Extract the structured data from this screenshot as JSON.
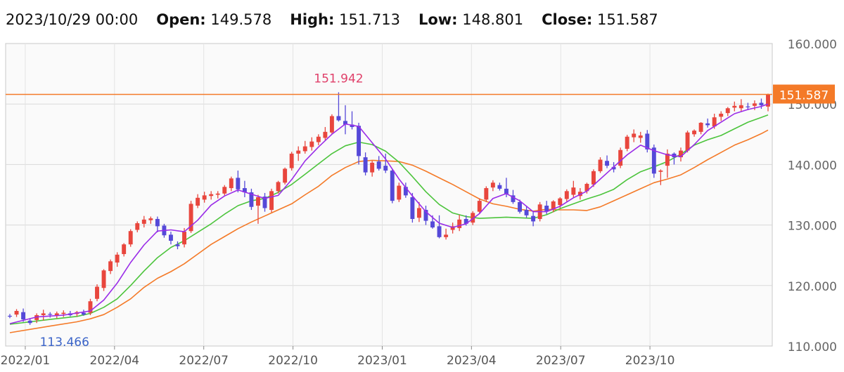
{
  "header": {
    "date": "2023/10/29 00:00",
    "open_label": "Open:",
    "open": "149.578",
    "high_label": "High:",
    "high": "151.713",
    "low_label": "Low:",
    "low": "148.801",
    "close_label": "Close:",
    "close": "151.587"
  },
  "chart_data": {
    "type": "candlestick",
    "title": "",
    "ylim": [
      110,
      160
    ],
    "y_ticks": [
      "160.000",
      "150.000",
      "140.000",
      "130.000",
      "120.000",
      "110.000"
    ],
    "x_ticks": [
      "2022/01",
      "2022/04",
      "2022/07",
      "2022/10",
      "2023/01",
      "2023/04",
      "2023/07",
      "2023/10"
    ],
    "annotations": {
      "max_label": "151.942",
      "min_label": "113.466",
      "last_price_label": "151.587"
    },
    "last_price": 151.587,
    "grid": true,
    "colors": {
      "up": "#e8463d",
      "down": "#5549d8",
      "ma_short": "#9a2ce8",
      "ma_mid": "#4cc43c",
      "ma_long": "#f47a28",
      "price_line": "#f47a28"
    },
    "candles": [
      [
        115.0,
        115.3,
        114.6,
        114.9
      ],
      [
        115.2,
        116.1,
        114.8,
        115.8
      ],
      [
        115.6,
        116.2,
        114.0,
        114.4
      ],
      [
        114.2,
        114.6,
        113.5,
        113.8
      ],
      [
        114.3,
        115.4,
        113.8,
        115.1
      ],
      [
        115.1,
        116.0,
        114.2,
        115.4
      ],
      [
        115.3,
        115.6,
        114.7,
        115.2
      ],
      [
        115.1,
        115.7,
        114.6,
        115.4
      ],
      [
        115.3,
        115.9,
        114.8,
        115.5
      ],
      [
        115.4,
        115.8,
        114.9,
        115.1
      ],
      [
        115.3,
        115.8,
        114.9,
        115.6
      ],
      [
        115.5,
        116.0,
        115.0,
        115.2
      ],
      [
        115.5,
        117.8,
        115.1,
        117.4
      ],
      [
        117.8,
        120.2,
        117.4,
        119.8
      ],
      [
        119.6,
        122.7,
        119.1,
        122.5
      ],
      [
        122.4,
        124.3,
        121.9,
        124.0
      ],
      [
        123.8,
        125.5,
        123.1,
        125.1
      ],
      [
        125.2,
        127.0,
        124.8,
        126.8
      ],
      [
        126.8,
        129.3,
        126.4,
        129.0
      ],
      [
        129.2,
        130.6,
        128.8,
        130.3
      ],
      [
        130.2,
        131.5,
        129.6,
        130.9
      ],
      [
        130.8,
        131.4,
        130.2,
        131.1
      ],
      [
        131.0,
        131.4,
        128.8,
        129.8
      ],
      [
        129.9,
        130.2,
        127.9,
        128.3
      ],
      [
        128.4,
        128.9,
        126.8,
        127.4
      ],
      [
        126.8,
        127.3,
        126.0,
        126.5
      ],
      [
        126.8,
        129.5,
        126.3,
        128.9
      ],
      [
        129.0,
        134.0,
        128.7,
        133.5
      ],
      [
        133.2,
        135.1,
        132.8,
        134.5
      ],
      [
        134.2,
        135.5,
        133.7,
        134.9
      ],
      [
        134.8,
        135.6,
        134.2,
        135.1
      ],
      [
        135.0,
        135.6,
        134.4,
        135.2
      ],
      [
        135.2,
        136.6,
        134.9,
        136.3
      ],
      [
        136.1,
        138.0,
        135.6,
        137.7
      ],
      [
        137.8,
        139.0,
        135.4,
        135.9
      ],
      [
        136.1,
        137.3,
        134.6,
        135.4
      ],
      [
        135.4,
        136.0,
        132.5,
        133.0
      ],
      [
        133.2,
        135.0,
        130.2,
        134.6
      ],
      [
        134.7,
        135.3,
        132.2,
        132.8
      ],
      [
        132.5,
        136.0,
        132.1,
        135.6
      ],
      [
        135.6,
        137.3,
        135.2,
        137.1
      ],
      [
        137.0,
        139.5,
        136.7,
        139.3
      ],
      [
        139.4,
        142.1,
        139.0,
        141.8
      ],
      [
        141.8,
        143.0,
        140.6,
        142.3
      ],
      [
        142.2,
        143.9,
        141.8,
        143.0
      ],
      [
        142.9,
        144.5,
        142.3,
        143.8
      ],
      [
        143.7,
        145.0,
        143.2,
        144.6
      ],
      [
        144.4,
        146.2,
        144.0,
        145.4
      ],
      [
        145.3,
        148.3,
        145.0,
        148.0
      ],
      [
        148.0,
        151.942,
        147.1,
        147.3
      ],
      [
        147.2,
        149.8,
        145.0,
        146.6
      ],
      [
        146.6,
        148.8,
        145.8,
        146.2
      ],
      [
        146.4,
        146.9,
        140.0,
        141.4
      ],
      [
        141.2,
        142.0,
        138.2,
        138.7
      ],
      [
        138.7,
        140.6,
        138.0,
        140.3
      ],
      [
        140.5,
        141.4,
        139.0,
        139.3
      ],
      [
        139.8,
        141.8,
        138.6,
        139.0
      ],
      [
        139.0,
        139.2,
        133.6,
        134.0
      ],
      [
        134.2,
        137.0,
        133.8,
        136.5
      ],
      [
        136.3,
        137.0,
        134.5,
        134.9
      ],
      [
        134.6,
        135.3,
        130.4,
        131.0
      ],
      [
        131.2,
        133.8,
        130.5,
        132.8
      ],
      [
        132.5,
        133.2,
        130.0,
        130.7
      ],
      [
        130.6,
        131.6,
        129.4,
        129.6
      ],
      [
        129.8,
        131.6,
        127.8,
        128.0
      ],
      [
        128.0,
        129.4,
        127.6,
        128.4
      ],
      [
        129.2,
        130.4,
        128.6,
        129.8
      ],
      [
        129.5,
        131.7,
        129.0,
        130.9
      ],
      [
        131.0,
        131.6,
        129.9,
        130.2
      ],
      [
        130.4,
        132.3,
        130.0,
        132.0
      ],
      [
        132.2,
        134.4,
        131.8,
        134.0
      ],
      [
        134.2,
        136.4,
        133.8,
        136.1
      ],
      [
        136.2,
        137.4,
        135.6,
        137.0
      ],
      [
        136.6,
        137.0,
        135.7,
        136.0
      ],
      [
        136.0,
        137.8,
        134.6,
        135.1
      ],
      [
        134.9,
        135.8,
        133.5,
        133.8
      ],
      [
        133.8,
        134.2,
        131.9,
        132.2
      ],
      [
        132.5,
        133.2,
        131.2,
        131.6
      ],
      [
        131.5,
        132.3,
        129.8,
        130.6
      ],
      [
        131.0,
        133.8,
        130.6,
        133.4
      ],
      [
        133.2,
        134.0,
        131.8,
        132.3
      ],
      [
        132.6,
        134.1,
        132.1,
        133.9
      ],
      [
        133.3,
        134.6,
        132.8,
        134.4
      ],
      [
        134.3,
        135.9,
        133.9,
        135.6
      ],
      [
        135.0,
        137.3,
        134.6,
        136.2
      ],
      [
        134.8,
        136.1,
        134.2,
        135.5
      ],
      [
        135.6,
        137.0,
        135.2,
        136.8
      ],
      [
        136.7,
        139.2,
        136.3,
        138.9
      ],
      [
        138.9,
        141.2,
        138.6,
        140.8
      ],
      [
        140.6,
        141.5,
        139.4,
        139.8
      ],
      [
        139.6,
        140.4,
        138.7,
        139.2
      ],
      [
        139.8,
        142.8,
        139.4,
        142.4
      ],
      [
        142.6,
        144.9,
        142.2,
        144.6
      ],
      [
        144.5,
        145.8,
        143.7,
        145.1
      ],
      [
        144.4,
        145.4,
        143.6,
        144.8
      ],
      [
        145.1,
        145.7,
        142.0,
        142.5
      ],
      [
        142.8,
        143.3,
        137.8,
        138.5
      ],
      [
        138.8,
        139.2,
        136.6,
        139.0
      ],
      [
        139.8,
        142.5,
        137.8,
        141.8
      ],
      [
        141.8,
        142.0,
        140.0,
        141.2
      ],
      [
        141.2,
        142.8,
        140.5,
        142.3
      ],
      [
        142.3,
        145.6,
        142.0,
        145.3
      ],
      [
        145.0,
        145.8,
        144.6,
        145.6
      ],
      [
        145.4,
        147.0,
        145.0,
        146.9
      ],
      [
        146.8,
        147.6,
        146.1,
        146.5
      ],
      [
        146.3,
        148.4,
        145.9,
        147.8
      ],
      [
        147.9,
        148.8,
        147.2,
        148.4
      ],
      [
        148.5,
        149.5,
        148.0,
        149.3
      ],
      [
        149.4,
        150.4,
        148.8,
        149.7
      ],
      [
        149.3,
        150.8,
        148.7,
        149.8
      ],
      [
        149.6,
        150.2,
        149.0,
        149.5
      ],
      [
        149.7,
        150.6,
        149.0,
        150.1
      ],
      [
        150.2,
        150.9,
        149.2,
        149.8
      ],
      [
        149.578,
        151.713,
        148.801,
        151.587
      ]
    ],
    "ma_short": [
      [
        0,
        113.7
      ],
      [
        4,
        114.8
      ],
      [
        8,
        115.1
      ],
      [
        12,
        115.8
      ],
      [
        14,
        117.6
      ],
      [
        16,
        120.4
      ],
      [
        18,
        123.8
      ],
      [
        20,
        126.7
      ],
      [
        22,
        129.0
      ],
      [
        24,
        129.2
      ],
      [
        26,
        128.9
      ],
      [
        28,
        130.8
      ],
      [
        30,
        133.3
      ],
      [
        32,
        134.8
      ],
      [
        34,
        135.8
      ],
      [
        36,
        135.1
      ],
      [
        38,
        134.4
      ],
      [
        40,
        134.9
      ],
      [
        42,
        137.5
      ],
      [
        44,
        140.6
      ],
      [
        46,
        142.9
      ],
      [
        48,
        145.0
      ],
      [
        50,
        146.7
      ],
      [
        52,
        146.3
      ],
      [
        54,
        143.6
      ],
      [
        56,
        140.9
      ],
      [
        58,
        137.6
      ],
      [
        60,
        134.8
      ],
      [
        62,
        132.2
      ],
      [
        64,
        130.3
      ],
      [
        66,
        129.6
      ],
      [
        68,
        130.2
      ],
      [
        70,
        131.9
      ],
      [
        72,
        134.4
      ],
      [
        74,
        135.2
      ],
      [
        76,
        134.0
      ],
      [
        78,
        132.2
      ],
      [
        80,
        132.2
      ],
      [
        82,
        133.1
      ],
      [
        84,
        134.5
      ],
      [
        86,
        135.6
      ],
      [
        88,
        137.6
      ],
      [
        90,
        139.6
      ],
      [
        92,
        141.6
      ],
      [
        94,
        143.2
      ],
      [
        96,
        142.3
      ],
      [
        98,
        141.6
      ],
      [
        100,
        141.3
      ],
      [
        102,
        143.3
      ],
      [
        104,
        145.6
      ],
      [
        106,
        147.0
      ],
      [
        108,
        148.4
      ],
      [
        110,
        149.1
      ],
      [
        112,
        149.6
      ],
      [
        113,
        150.0
      ]
    ],
    "ma_mid": [
      [
        0,
        113.6
      ],
      [
        6,
        114.4
      ],
      [
        10,
        114.9
      ],
      [
        12,
        115.4
      ],
      [
        14,
        116.4
      ],
      [
        16,
        117.8
      ],
      [
        18,
        120.0
      ],
      [
        20,
        122.4
      ],
      [
        22,
        124.6
      ],
      [
        24,
        126.3
      ],
      [
        26,
        127.4
      ],
      [
        28,
        128.8
      ],
      [
        30,
        130.2
      ],
      [
        32,
        131.8
      ],
      [
        34,
        133.2
      ],
      [
        36,
        134.0
      ],
      [
        38,
        134.4
      ],
      [
        40,
        135.4
      ],
      [
        42,
        136.7
      ],
      [
        44,
        138.4
      ],
      [
        46,
        140.1
      ],
      [
        48,
        141.8
      ],
      [
        50,
        143.1
      ],
      [
        52,
        143.7
      ],
      [
        54,
        143.3
      ],
      [
        56,
        142.2
      ],
      [
        58,
        140.4
      ],
      [
        60,
        138.0
      ],
      [
        62,
        135.5
      ],
      [
        64,
        133.4
      ],
      [
        66,
        132.0
      ],
      [
        68,
        131.4
      ],
      [
        70,
        131.1
      ],
      [
        72,
        131.2
      ],
      [
        74,
        131.3
      ],
      [
        76,
        131.2
      ],
      [
        78,
        131.1
      ],
      [
        80,
        131.7
      ],
      [
        82,
        132.7
      ],
      [
        84,
        133.5
      ],
      [
        86,
        134.3
      ],
      [
        88,
        135.0
      ],
      [
        90,
        135.9
      ],
      [
        92,
        137.5
      ],
      [
        94,
        138.8
      ],
      [
        96,
        139.6
      ],
      [
        98,
        140.5
      ],
      [
        100,
        141.7
      ],
      [
        102,
        143.2
      ],
      [
        104,
        144.1
      ],
      [
        106,
        144.8
      ],
      [
        108,
        145.9
      ],
      [
        110,
        147.0
      ],
      [
        112,
        147.8
      ],
      [
        113,
        148.2
      ]
    ],
    "ma_long": [
      [
        0,
        112.2
      ],
      [
        6,
        113.3
      ],
      [
        10,
        114.0
      ],
      [
        12,
        114.5
      ],
      [
        14,
        115.2
      ],
      [
        16,
        116.4
      ],
      [
        18,
        117.8
      ],
      [
        20,
        119.7
      ],
      [
        22,
        121.2
      ],
      [
        24,
        122.3
      ],
      [
        26,
        123.6
      ],
      [
        28,
        125.2
      ],
      [
        30,
        126.8
      ],
      [
        32,
        128.1
      ],
      [
        34,
        129.4
      ],
      [
        36,
        130.5
      ],
      [
        38,
        131.5
      ],
      [
        40,
        132.5
      ],
      [
        42,
        133.5
      ],
      [
        44,
        135.0
      ],
      [
        46,
        136.4
      ],
      [
        48,
        138.2
      ],
      [
        50,
        139.5
      ],
      [
        52,
        140.5
      ],
      [
        54,
        140.7
      ],
      [
        56,
        140.6
      ],
      [
        58,
        140.5
      ],
      [
        60,
        139.9
      ],
      [
        62,
        138.9
      ],
      [
        64,
        137.8
      ],
      [
        66,
        136.7
      ],
      [
        68,
        135.5
      ],
      [
        70,
        134.3
      ],
      [
        72,
        133.5
      ],
      [
        74,
        133.1
      ],
      [
        76,
        132.6
      ],
      [
        78,
        132.3
      ],
      [
        80,
        132.6
      ],
      [
        82,
        132.5
      ],
      [
        84,
        132.5
      ],
      [
        86,
        132.4
      ],
      [
        88,
        133.0
      ],
      [
        90,
        134.0
      ],
      [
        92,
        135.0
      ],
      [
        94,
        136.0
      ],
      [
        96,
        137.0
      ],
      [
        98,
        137.6
      ],
      [
        100,
        138.3
      ],
      [
        102,
        139.5
      ],
      [
        104,
        140.8
      ],
      [
        106,
        142.0
      ],
      [
        108,
        143.2
      ],
      [
        110,
        144.1
      ],
      [
        112,
        145.1
      ],
      [
        113,
        145.7
      ]
    ]
  }
}
